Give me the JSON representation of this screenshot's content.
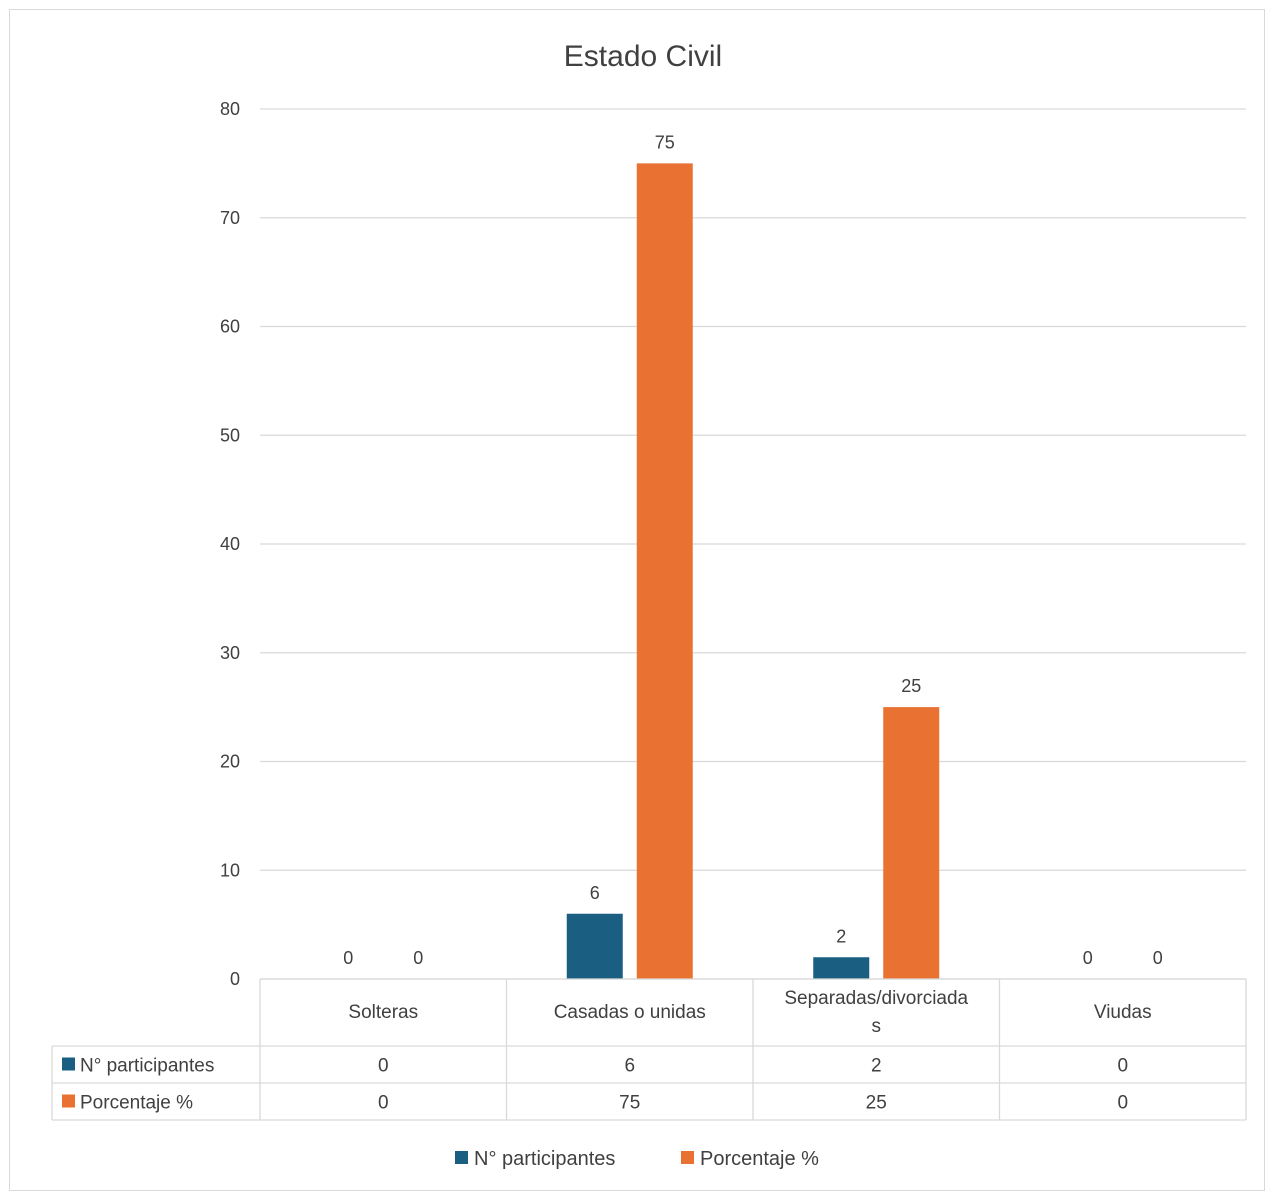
{
  "chart_data": {
    "type": "bar",
    "title": "Estado Civil",
    "categories": [
      "Solteras",
      "Casadas o unidas",
      "Separadas/divorciadas",
      "Viudas"
    ],
    "series": [
      {
        "name": "N° participantes",
        "values": [
          0,
          6,
          2,
          0
        ],
        "color": "#1a5f82"
      },
      {
        "name": "Porcentaje  %",
        "values": [
          0,
          75,
          25,
          0
        ],
        "color": "#e97132"
      }
    ],
    "ylim": [
      0,
      80
    ],
    "yticks": [
      0,
      10,
      20,
      30,
      40,
      50,
      60,
      70,
      80
    ],
    "grid": true,
    "legend": "bottom",
    "data_table": true
  }
}
